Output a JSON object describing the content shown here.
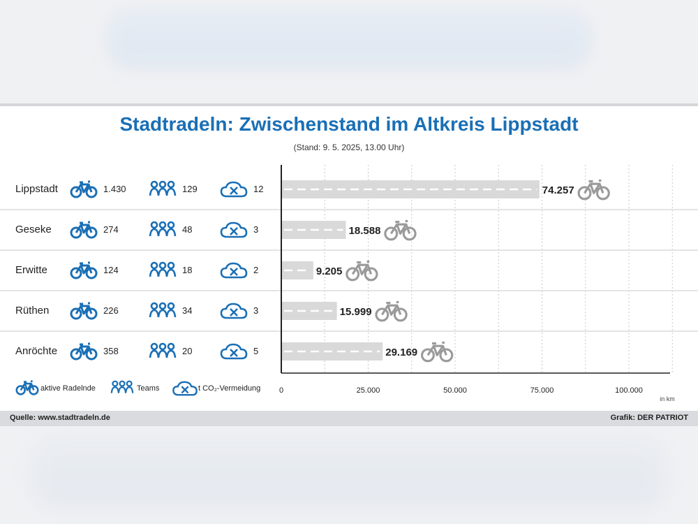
{
  "title": "Stadtradeln: Zwischenstand im Altkreis Lippstadt",
  "subtitle": "(Stand: 9. 5. 2025, 13.00 Uhr)",
  "rows": [
    {
      "city": "Lippstadt",
      "radelnde": "1.430",
      "teams": "129",
      "co2": "12"
    },
    {
      "city": "Geseke",
      "radelnde": "274",
      "teams": "48",
      "co2": "3"
    },
    {
      "city": "Erwitte",
      "radelnde": "124",
      "teams": "18",
      "co2": "2"
    },
    {
      "city": "Rüthen",
      "radelnde": "226",
      "teams": "34",
      "co2": "3"
    },
    {
      "city": "Anröchte",
      "radelnde": "358",
      "teams": "20",
      "co2": "5"
    }
  ],
  "legend": {
    "radelnde": "aktive Radelnde",
    "teams": "Teams",
    "co2": "t CO₂-Vermeidung"
  },
  "footer": {
    "source": "Quelle: www.stadtradeln.de",
    "credit": "Grafik: DER PATRIOT"
  },
  "colors": {
    "accent": "#1a6fb5",
    "bar": "#d9d9d9",
    "icon_gray": "#9a9a9a",
    "footer": "#d9dbde"
  },
  "chart_data": {
    "type": "bar",
    "orientation": "horizontal",
    "categories": [
      "Lippstadt",
      "Geseke",
      "Erwitte",
      "Rüthen",
      "Anröchte"
    ],
    "values": [
      74257,
      18588,
      9205,
      15999,
      29169
    ],
    "value_labels": [
      "74.257",
      "18.588",
      "9.205",
      "15.999",
      "29.169"
    ],
    "xlim": [
      0,
      115000
    ],
    "xticks": [
      0,
      25000,
      50000,
      75000,
      100000
    ],
    "xtick_labels": [
      "0",
      "25.000",
      "50.000",
      "75.000",
      "100.000"
    ],
    "unit_label": "in km",
    "grid": true
  }
}
